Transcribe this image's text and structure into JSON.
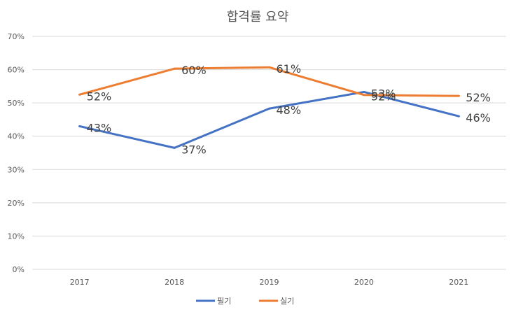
{
  "chart_data": {
    "type": "line",
    "title": "합격률 요약",
    "categories": [
      "2017",
      "2018",
      "2019",
      "2020",
      "2021"
    ],
    "yticks": [
      "0%",
      "10%",
      "20%",
      "30%",
      "40%",
      "50%",
      "60%",
      "70%"
    ],
    "ylim": [
      0,
      70
    ],
    "xlabel": "",
    "ylabel": "",
    "grid": true,
    "legend_position": "bottom",
    "series": [
      {
        "name": "필기",
        "color": "#4472c4",
        "values": [
          43.0,
          36.5,
          48.3,
          53.3,
          46.0
        ],
        "labels": [
          "43%",
          "37%",
          "48%",
          "53%",
          "46%"
        ]
      },
      {
        "name": "실기",
        "color": "#ed7d31",
        "values": [
          52.5,
          60.3,
          60.7,
          52.4,
          52.1
        ],
        "labels": [
          "52%",
          "60%",
          "61%",
          "52%",
          "52%"
        ]
      }
    ]
  }
}
